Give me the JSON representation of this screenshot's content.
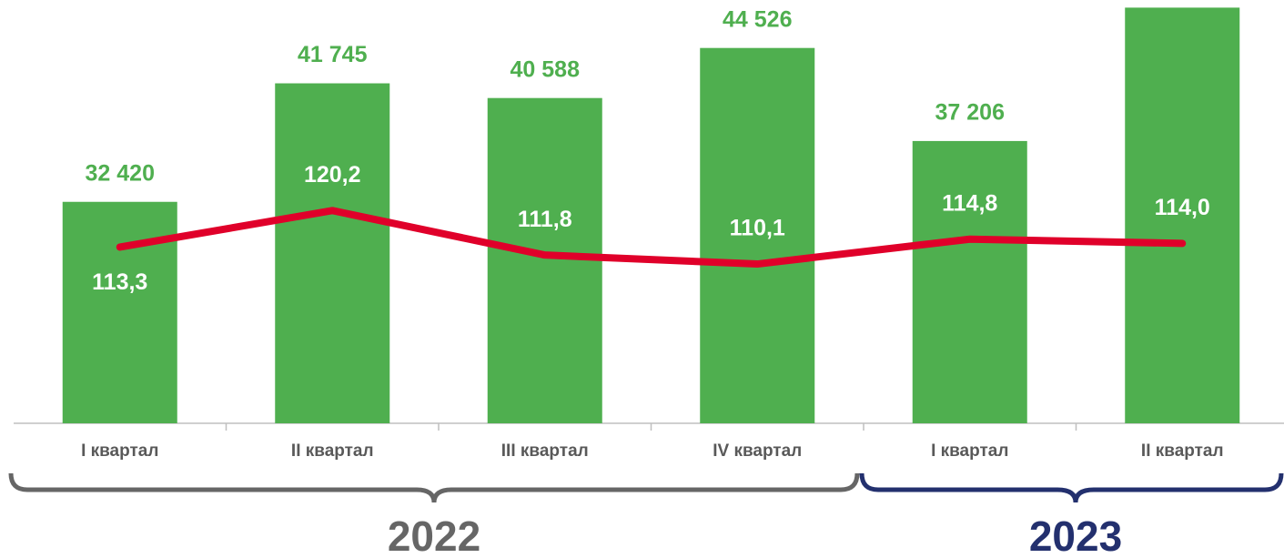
{
  "chart_data": {
    "type": "bar-line",
    "categories": [
      "I квартал",
      "II квартал",
      "III квартал",
      "IV квартал",
      "I квартал",
      "II квартал"
    ],
    "series": [
      {
        "type": "bar",
        "color": "#4faf4f",
        "values": [
          32420,
          41745,
          40588,
          44526,
          37206,
          47700
        ],
        "value_labels": [
          "32 420",
          "41 745",
          "40 588",
          "44 526",
          "37 206",
          null
        ]
      },
      {
        "type": "line",
        "axis": "y2",
        "color": "#e0002a",
        "values": [
          113.3,
          120.2,
          111.8,
          110.1,
          114.8,
          114.0
        ],
        "value_labels": [
          "113,3",
          "120,2",
          "111,8",
          "110,1",
          "114,8",
          "114,0"
        ]
      }
    ],
    "ylim": [
      15000,
      48300
    ],
    "y2lim": [
      80,
      160
    ],
    "groups": [
      {
        "label": "2022",
        "color": "#666666"
      },
      {
        "label": "2023",
        "color": "#23306e"
      }
    ]
  }
}
